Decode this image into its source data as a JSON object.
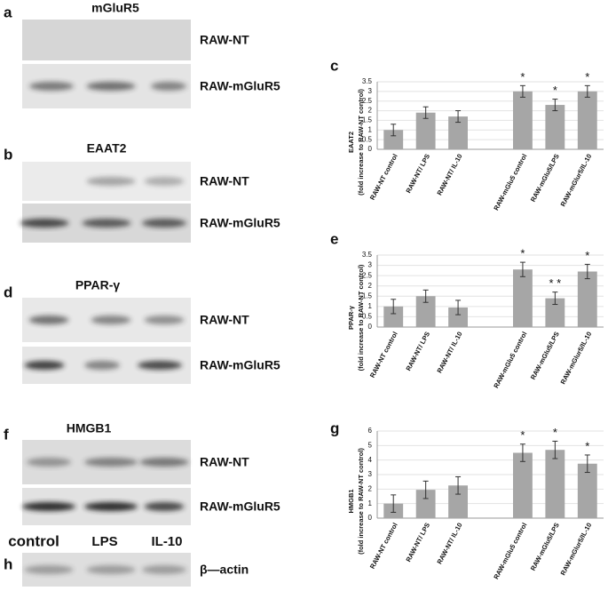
{
  "blots": [
    {
      "panel": "a",
      "title": "mGluR5",
      "rows": [
        "RAW-NT",
        "RAW-mGluR5"
      ]
    },
    {
      "panel": "b",
      "title": "EAAT2",
      "rows": [
        "RAW-NT",
        "RAW-mGluR5"
      ]
    },
    {
      "panel": "d",
      "title": "PPAR-γ",
      "rows": [
        "RAW-NT",
        "RAW-mGluR5"
      ]
    },
    {
      "panel": "f",
      "title": "HMGB1",
      "rows": [
        "RAW-NT",
        "RAW-mGluR5"
      ]
    },
    {
      "panel": "h",
      "lanes": [
        "control",
        "LPS",
        "IL-10"
      ],
      "rows": [
        "β—actin"
      ]
    }
  ],
  "chart_data": [
    {
      "type": "bar",
      "panel": "c",
      "ylabel": [
        "EAAT2",
        "(fold increase to RAW-NT control)"
      ],
      "categories": [
        "RAW-NT control",
        "RAW-NT/ LPS",
        "RAW-NT/ IL-10",
        null,
        "RAW-mGlu5 control",
        "RAW-mGlu5/LPS",
        "RAW-mGlur5/IL-10"
      ],
      "values": [
        1.0,
        1.9,
        1.7,
        null,
        3.0,
        2.3,
        3.0
      ],
      "errors": [
        0.3,
        0.3,
        0.3,
        null,
        0.3,
        0.3,
        0.3
      ],
      "significance": [
        null,
        null,
        null,
        null,
        "*",
        "*",
        "*"
      ],
      "color": "#a6a6a6",
      "ylim": [
        0,
        3.5
      ],
      "yticks": [
        0,
        0.5,
        1,
        1.5,
        2,
        2.5,
        3,
        3.5
      ],
      "grid": true
    },
    {
      "type": "bar",
      "panel": "e",
      "ylabel": [
        "PPAR-γ",
        "(fold increase to RAW-NT control)"
      ],
      "categories": [
        "RAW-NT control",
        "RAW-NT/ LPS",
        "RAW-NT/ IL-10",
        null,
        "RAW-mGlu5 control",
        "RAW-mGlu5/LPS",
        "RAW-mGlur5/IL-10"
      ],
      "values": [
        1.0,
        1.5,
        0.95,
        null,
        2.8,
        1.4,
        2.7
      ],
      "errors": [
        0.35,
        0.3,
        0.35,
        null,
        0.35,
        0.3,
        0.35
      ],
      "significance": [
        null,
        null,
        null,
        null,
        "*",
        "* *",
        "*"
      ],
      "color": "#a6a6a6",
      "ylim": [
        0,
        3.5
      ],
      "yticks": [
        0,
        0.5,
        1,
        1.5,
        2,
        2.5,
        3,
        3.5
      ],
      "grid": true
    },
    {
      "type": "bar",
      "panel": "g",
      "ylabel": [
        "HMGB1",
        "(fold increase to RAW-NT control)"
      ],
      "categories": [
        "RAW-NT control",
        "RAW-NT/ LPS",
        "RAW-NT/ IL-10",
        null,
        "RAW-mGlu5 control",
        "RAW-mGlu5/LPS",
        "RAW-mGlur5/IL-10"
      ],
      "values": [
        1.0,
        1.95,
        2.25,
        null,
        4.5,
        4.7,
        3.75
      ],
      "errors": [
        0.6,
        0.6,
        0.6,
        null,
        0.6,
        0.6,
        0.6
      ],
      "significance": [
        null,
        null,
        null,
        null,
        "*",
        "*",
        "*"
      ],
      "color": "#a6a6a6",
      "ylim": [
        0,
        6
      ],
      "yticks": [
        0,
        1,
        2,
        3,
        4,
        5,
        6
      ],
      "grid": true
    }
  ]
}
